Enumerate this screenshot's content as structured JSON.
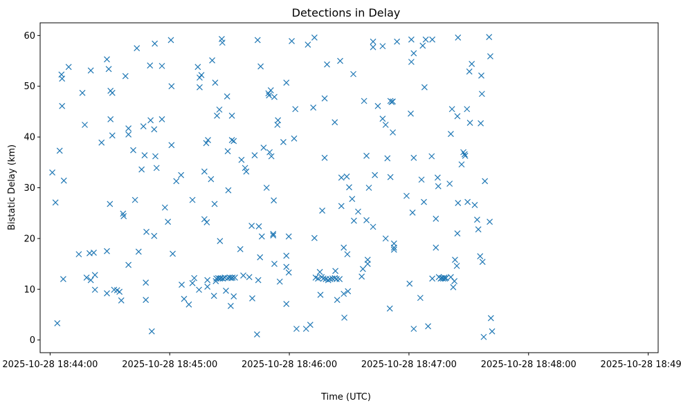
{
  "chart_data": {
    "type": "scatter",
    "title": "Detections in Delay",
    "xlabel": "Time (UTC)",
    "ylabel": "Bistatic Delay (km)",
    "x_unit": "seconds after 2025-10-28 18:44:00",
    "xlim": [
      -5,
      305
    ],
    "ylim": [
      -2.5,
      62.5
    ],
    "x_ticks": [
      {
        "value": 0,
        "label": "2025-10-28 18:44:00"
      },
      {
        "value": 60,
        "label": "2025-10-28 18:45:00"
      },
      {
        "value": 120,
        "label": "2025-10-28 18:46:00"
      },
      {
        "value": 180,
        "label": "2025-10-28 18:47:00"
      },
      {
        "value": 240,
        "label": "2025-10-28 18:48:00"
      },
      {
        "value": 300,
        "label": "2025-10-28 18:49:00"
      }
    ],
    "y_ticks": [
      0,
      10,
      20,
      30,
      40,
      50,
      60
    ],
    "marker": "x",
    "color": "#1f77b4",
    "grid": false,
    "points": [
      [
        1.1,
        33.0
      ],
      [
        2.7,
        27.1
      ],
      [
        3.6,
        3.3
      ],
      [
        5.7,
        52.3
      ],
      [
        6.0,
        51.5
      ],
      [
        6.0,
        46.1
      ],
      [
        6.9,
        31.4
      ],
      [
        6.6,
        12.0
      ],
      [
        4.8,
        37.3
      ],
      [
        9.3,
        53.8
      ],
      [
        14.4,
        16.9
      ],
      [
        16.2,
        48.7
      ],
      [
        17.4,
        42.4
      ],
      [
        18.3,
        12.3
      ],
      [
        19.8,
        17.1
      ],
      [
        20.4,
        11.8
      ],
      [
        20.4,
        53.1
      ],
      [
        21.9,
        17.2
      ],
      [
        22.5,
        12.8
      ],
      [
        22.5,
        9.9
      ],
      [
        25.8,
        38.9
      ],
      [
        28.5,
        17.5
      ],
      [
        28.5,
        9.2
      ],
      [
        28.5,
        55.3
      ],
      [
        29.4,
        53.4
      ],
      [
        30.3,
        49.1
      ],
      [
        30.3,
        43.5
      ],
      [
        30.0,
        26.8
      ],
      [
        31.2,
        48.7
      ],
      [
        31.2,
        40.3
      ],
      [
        32.1,
        9.9
      ],
      [
        33.6,
        9.8
      ],
      [
        34.8,
        9.5
      ],
      [
        35.7,
        7.8
      ],
      [
        36.6,
        24.9
      ],
      [
        36.9,
        24.4
      ],
      [
        37.8,
        52.0
      ],
      [
        39.3,
        41.7
      ],
      [
        39.3,
        40.5
      ],
      [
        39.3,
        14.8
      ],
      [
        41.7,
        37.4
      ],
      [
        42.6,
        27.6
      ],
      [
        43.5,
        57.5
      ],
      [
        44.4,
        17.4
      ],
      [
        45.9,
        33.6
      ],
      [
        46.8,
        42.1
      ],
      [
        47.4,
        36.4
      ],
      [
        48.0,
        11.3
      ],
      [
        48.0,
        7.9
      ],
      [
        48.3,
        21.3
      ],
      [
        50.1,
        54.1
      ],
      [
        50.4,
        43.3
      ],
      [
        51.0,
        1.7
      ],
      [
        52.2,
        41.5
      ],
      [
        52.2,
        20.5
      ],
      [
        52.5,
        58.4
      ],
      [
        52.8,
        36.2
      ],
      [
        53.4,
        33.9
      ],
      [
        56.1,
        54.0
      ],
      [
        56.1,
        43.5
      ],
      [
        57.6,
        26.1
      ],
      [
        59.1,
        23.3
      ],
      [
        60.6,
        59.1
      ],
      [
        60.9,
        50.0
      ],
      [
        60.9,
        38.4
      ],
      [
        61.5,
        17.0
      ],
      [
        63.3,
        31.3
      ],
      [
        65.7,
        32.5
      ],
      [
        66.0,
        10.9
      ],
      [
        67.2,
        8.1
      ],
      [
        69.6,
        7.0
      ],
      [
        71.4,
        27.6
      ],
      [
        71.4,
        11.2
      ],
      [
        72.3,
        12.2
      ],
      [
        74.1,
        53.8
      ],
      [
        74.7,
        9.9
      ],
      [
        75.0,
        49.8
      ],
      [
        75.0,
        51.7
      ],
      [
        75.9,
        52.2
      ],
      [
        77.4,
        33.2
      ],
      [
        77.4,
        23.8
      ],
      [
        78.3,
        38.8
      ],
      [
        78.6,
        23.2
      ],
      [
        78.9,
        10.5
      ],
      [
        78.9,
        11.8
      ],
      [
        79.2,
        39.4
      ],
      [
        80.7,
        31.7
      ],
      [
        81.3,
        55.1
      ],
      [
        82.2,
        8.7
      ],
      [
        82.5,
        26.8
      ],
      [
        82.8,
        50.7
      ],
      [
        83.1,
        11.6
      ],
      [
        83.4,
        12.1
      ],
      [
        83.7,
        44.2
      ],
      [
        84.3,
        12.2
      ],
      [
        85.2,
        19.5
      ],
      [
        84.9,
        45.4
      ],
      [
        85.2,
        12.1
      ],
      [
        85.8,
        12.2
      ],
      [
        86.1,
        59.3
      ],
      [
        86.4,
        58.6
      ],
      [
        86.7,
        12.1
      ],
      [
        87.6,
        12.3
      ],
      [
        88.2,
        9.7
      ],
      [
        88.8,
        48.0
      ],
      [
        89.1,
        37.2
      ],
      [
        89.1,
        12.2
      ],
      [
        89.4,
        29.5
      ],
      [
        90.0,
        12.3
      ],
      [
        90.6,
        6.7
      ],
      [
        90.9,
        12.2
      ],
      [
        91.2,
        39.4
      ],
      [
        91.2,
        44.2
      ],
      [
        91.5,
        12.3
      ],
      [
        92.1,
        39.2
      ],
      [
        92.1,
        8.6
      ],
      [
        92.7,
        12.3
      ],
      [
        95.4,
        17.9
      ],
      [
        96.0,
        35.5
      ],
      [
        96.9,
        12.7
      ],
      [
        97.8,
        33.9
      ],
      [
        98.4,
        33.2
      ],
      [
        99.9,
        12.4
      ],
      [
        101.1,
        22.5
      ],
      [
        101.4,
        8.2
      ],
      [
        102.6,
        36.4
      ],
      [
        103.8,
        1.1
      ],
      [
        104.1,
        59.1
      ],
      [
        104.4,
        11.8
      ],
      [
        104.7,
        22.4
      ],
      [
        105.3,
        16.3
      ],
      [
        105.6,
        53.9
      ],
      [
        106.2,
        20.4
      ],
      [
        107.1,
        37.9
      ],
      [
        108.6,
        30.0
      ],
      [
        109.5,
        48.6
      ],
      [
        109.8,
        48.2
      ],
      [
        110.1,
        37.0
      ],
      [
        110.7,
        49.2
      ],
      [
        111.0,
        36.2
      ],
      [
        111.9,
        20.9
      ],
      [
        111.9,
        20.6
      ],
      [
        112.2,
        27.5
      ],
      [
        112.5,
        15.0
      ],
      [
        112.5,
        47.9
      ],
      [
        114.0,
        42.4
      ],
      [
        114.3,
        43.3
      ],
      [
        115.2,
        11.5
      ],
      [
        117.0,
        39.0
      ],
      [
        118.5,
        50.7
      ],
      [
        118.5,
        16.6
      ],
      [
        118.5,
        14.4
      ],
      [
        118.5,
        7.1
      ],
      [
        119.7,
        13.3
      ],
      [
        119.7,
        20.4
      ],
      [
        121.2,
        58.9
      ],
      [
        122.4,
        39.7
      ],
      [
        123.0,
        45.5
      ],
      [
        123.6,
        2.2
      ],
      [
        128.4,
        2.2
      ],
      [
        129.3,
        58.2
      ],
      [
        130.5,
        3.0
      ],
      [
        132.0,
        45.8
      ],
      [
        132.6,
        59.6
      ],
      [
        132.6,
        20.1
      ],
      [
        133.2,
        12.3
      ],
      [
        134.4,
        12.1
      ],
      [
        135.3,
        13.4
      ],
      [
        135.6,
        8.9
      ],
      [
        136.2,
        12.4
      ],
      [
        136.5,
        25.5
      ],
      [
        137.1,
        12.1
      ],
      [
        137.7,
        47.6
      ],
      [
        137.7,
        35.9
      ],
      [
        138.3,
        12.0
      ],
      [
        138.9,
        54.3
      ],
      [
        139.5,
        11.8
      ],
      [
        140.4,
        12.0
      ],
      [
        141.6,
        12.1
      ],
      [
        142.8,
        12.2
      ],
      [
        142.8,
        42.9
      ],
      [
        143.1,
        13.6
      ],
      [
        143.7,
        12.0
      ],
      [
        144.0,
        7.9
      ],
      [
        145.2,
        12.0
      ],
      [
        145.5,
        55.0
      ],
      [
        146.1,
        26.4
      ],
      [
        146.1,
        32.0
      ],
      [
        147.3,
        18.2
      ],
      [
        147.3,
        9.1
      ],
      [
        147.6,
        4.4
      ],
      [
        148.8,
        32.2
      ],
      [
        149.1,
        16.9
      ],
      [
        149.4,
        9.6
      ],
      [
        150.0,
        30.1
      ],
      [
        151.5,
        27.8
      ],
      [
        152.1,
        52.4
      ],
      [
        152.4,
        23.5
      ],
      [
        154.5,
        25.3
      ],
      [
        156.3,
        12.5
      ],
      [
        156.9,
        14.0
      ],
      [
        157.5,
        47.1
      ],
      [
        158.7,
        36.3
      ],
      [
        158.7,
        23.6
      ],
      [
        159.3,
        15.8
      ],
      [
        159.3,
        15.0
      ],
      [
        159.9,
        30.0
      ],
      [
        162.0,
        58.8
      ],
      [
        162.0,
        57.7
      ],
      [
        162.0,
        22.3
      ],
      [
        162.9,
        32.5
      ],
      [
        164.4,
        46.1
      ],
      [
        166.8,
        57.9
      ],
      [
        166.8,
        43.6
      ],
      [
        168.3,
        20.0
      ],
      [
        168.3,
        42.4
      ],
      [
        169.2,
        35.8
      ],
      [
        170.4,
        6.2
      ],
      [
        170.7,
        32.1
      ],
      [
        170.7,
        47.1
      ],
      [
        171.3,
        46.9
      ],
      [
        171.9,
        47.0
      ],
      [
        171.9,
        40.9
      ],
      [
        172.5,
        19.0
      ],
      [
        172.5,
        18.2
      ],
      [
        172.5,
        17.8
      ],
      [
        174.0,
        58.8
      ],
      [
        178.8,
        28.4
      ],
      [
        180.3,
        11.1
      ],
      [
        180.9,
        44.6
      ],
      [
        181.2,
        59.2
      ],
      [
        181.2,
        54.8
      ],
      [
        181.8,
        25.1
      ],
      [
        182.4,
        2.2
      ],
      [
        182.4,
        35.9
      ],
      [
        182.4,
        56.5
      ],
      [
        185.7,
        8.3
      ],
      [
        186.3,
        31.6
      ],
      [
        186.9,
        58.0
      ],
      [
        187.5,
        27.2
      ],
      [
        187.8,
        49.8
      ],
      [
        188.4,
        59.2
      ],
      [
        189.6,
        2.7
      ],
      [
        191.7,
        59.2
      ],
      [
        191.4,
        36.2
      ],
      [
        191.7,
        12.1
      ],
      [
        193.5,
        23.9
      ],
      [
        193.5,
        18.2
      ],
      [
        194.4,
        32.0
      ],
      [
        194.7,
        30.3
      ],
      [
        195.0,
        12.4
      ],
      [
        195.9,
        12.1
      ],
      [
        196.5,
        12.2
      ],
      [
        197.1,
        12.1
      ],
      [
        197.7,
        12.3
      ],
      [
        198.0,
        12.1
      ],
      [
        198.6,
        12.2
      ],
      [
        200.4,
        30.8
      ],
      [
        201.0,
        12.4
      ],
      [
        201.0,
        40.6
      ],
      [
        201.6,
        45.5
      ],
      [
        202.2,
        10.4
      ],
      [
        202.8,
        11.6
      ],
      [
        203.1,
        15.8
      ],
      [
        204.0,
        14.6
      ],
      [
        204.3,
        21.0
      ],
      [
        204.3,
        44.1
      ],
      [
        204.6,
        27.0
      ],
      [
        204.6,
        59.6
      ],
      [
        206.4,
        34.6
      ],
      [
        207.3,
        37.0
      ],
      [
        207.9,
        36.6
      ],
      [
        208.2,
        36.3
      ],
      [
        209.1,
        45.5
      ],
      [
        209.4,
        27.2
      ],
      [
        210.3,
        52.9
      ],
      [
        210.6,
        42.8
      ],
      [
        211.5,
        54.4
      ],
      [
        213.0,
        26.6
      ],
      [
        214.2,
        23.7
      ],
      [
        214.8,
        21.8
      ],
      [
        215.7,
        16.5
      ],
      [
        216.0,
        42.7
      ],
      [
        216.3,
        52.1
      ],
      [
        216.6,
        48.5
      ],
      [
        216.9,
        15.4
      ],
      [
        217.5,
        0.6
      ],
      [
        218.1,
        31.3
      ],
      [
        220.2,
        59.7
      ],
      [
        220.5,
        23.3
      ],
      [
        220.8,
        55.9
      ],
      [
        221.1,
        4.3
      ],
      [
        221.7,
        1.7
      ]
    ]
  }
}
